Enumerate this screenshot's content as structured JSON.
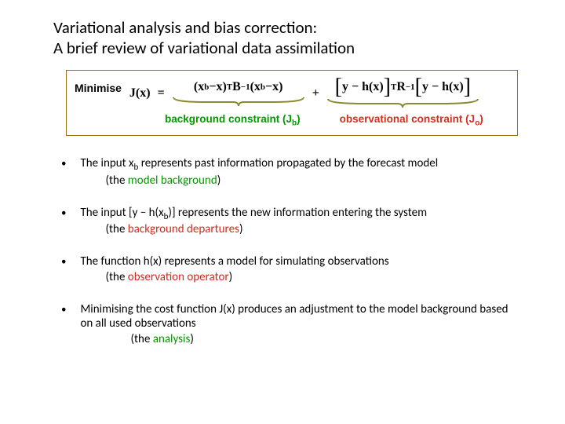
{
  "title": {
    "line1": "Variational analysis and bias correction:",
    "line2": "A brief review of variational data assimilation"
  },
  "formula": {
    "minimise_label": "Minimise",
    "lhs": "J(x)",
    "equals": "=",
    "term1": {
      "open": "(",
      "a": "x",
      "a_sub": "b",
      "minus": " − ",
      "b": "x",
      "close": ")",
      "sup": "T",
      "mid": "B",
      "mid_sup": "−1",
      "open2": "(",
      "c": "x",
      "c_sub": "b",
      "minus2": " − ",
      "d": "x",
      "close2": ")"
    },
    "plus": "+",
    "term2": {
      "lbrack": "[",
      "a": "y − h(x)",
      "rbrack": "]",
      "sup": "T",
      "mid": "R",
      "mid_sup": "−1",
      "lbrack2": "[",
      "b": "y − h(x)",
      "rbrack2": "]"
    },
    "brace_color": "#8a8a33",
    "constraint_bg_label": "background constraint (J",
    "constraint_bg_sub": "b",
    "constraint_bg_close": ")",
    "constraint_obs_label": "observational constraint (J",
    "constraint_obs_sub": "o",
    "constraint_obs_close": ")"
  },
  "bullets": [
    {
      "main_pre": "The input x",
      "main_sub": "b",
      "main_post": " represents past information propagated by the forecast model",
      "sub_pre": "(the ",
      "sub_colored": "model background",
      "sub_post": ")",
      "color": "green"
    },
    {
      "main_pre": "The input [y − h(x",
      "main_sub": "b",
      "main_post": ")]  represents the new information entering the system",
      "sub_pre": "(the ",
      "sub_colored": "background departures",
      "sub_post": ")",
      "color": "red"
    },
    {
      "main_pre": "The function h(x) represents a model for simulating observations",
      "main_sub": "",
      "main_post": "",
      "sub_pre": "(the ",
      "sub_colored": "observation operator",
      "sub_post": ")",
      "color": "red"
    },
    {
      "main_pre": "Minimising the cost function J(x) produces an adjustment to the model background based on all used observations",
      "main_sub": "",
      "main_post": "",
      "sub_pre": "(the ",
      "sub_colored": "analysis",
      "sub_post": ")",
      "color": "green",
      "sub_indent": 64
    }
  ],
  "colors": {
    "green": "#009900",
    "red": "#d52b1e",
    "box_border": "#936e0b",
    "brace": "#8a8a33"
  }
}
